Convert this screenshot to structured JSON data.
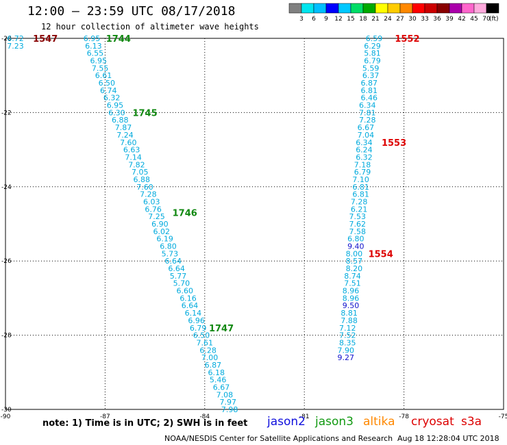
{
  "header": {
    "title": "12:00 – 23:59 UTC 08/17/2018",
    "subtitle": "12 hour collection of altimeter wave heights"
  },
  "colorbar": {
    "labels": [
      "3",
      "6",
      "9",
      "12",
      "15",
      "18",
      "21",
      "24",
      "27",
      "30",
      "33",
      "36",
      "39",
      "42",
      "45",
      "70"
    ],
    "unit": "(ft)",
    "colors": [
      "#808080",
      "#00e5ee",
      "#00bfff",
      "#0000ff",
      "#00c8ff",
      "#00dd66",
      "#00aa00",
      "#ffff00",
      "#ffcc00",
      "#ff8800",
      "#ff0000",
      "#cc0000",
      "#880000",
      "#aa00aa",
      "#ff66cc",
      "#ffaadd",
      "#000000"
    ]
  },
  "note": "note: 1) Time is in UTC; 2) SWH is in feet",
  "legend": [
    {
      "label": "jason2",
      "color": "#1010dd"
    },
    {
      "label": "jason3",
      "color": "#119911"
    },
    {
      "label": "altika",
      "color": "#ff8800"
    },
    {
      "label": "cryosat",
      "color": "#dd0000"
    },
    {
      "label": "s3a",
      "color": "#dd0000"
    }
  ],
  "footer": {
    "credit": "NOAA/NESDIS Center for Satellite Applications and Research",
    "timestamp": "Aug 18 12:28:04 UTC 2018"
  },
  "chart_data": {
    "type": "scatter",
    "title": "12:00 – 23:59 UTC 08/17/2018",
    "x_ticks": [
      "-90",
      "-87",
      "-84",
      "-81",
      "-78",
      "-75"
    ],
    "y_ticks": [
      "-20",
      "-22",
      "-24",
      "-26",
      "-28",
      "-30"
    ],
    "xlim": [
      -90,
      -75
    ],
    "ylim": [
      -30,
      -20
    ],
    "grid": true,
    "value_unit": "ft",
    "passes": [
      {
        "points": [
          {
            "lon": -89.7,
            "lat": -20.0,
            "swh": "6.72"
          },
          {
            "lon": -89.7,
            "lat": -20.2,
            "swh": "7.23"
          }
        ],
        "time_labels": [
          {
            "lon": -88.8,
            "lat": -20.0,
            "text": "1547",
            "color": "#880000"
          }
        ]
      },
      {
        "points": [
          {
            "lon": -87.4,
            "lat": -20.0,
            "swh": "6.95"
          },
          {
            "lon": -87.35,
            "lat": -20.2,
            "swh": "6.13"
          },
          {
            "lon": -87.3,
            "lat": -20.4,
            "swh": "6.55"
          },
          {
            "lon": -87.2,
            "lat": -20.6,
            "swh": "6.95"
          },
          {
            "lon": -87.15,
            "lat": -20.8,
            "swh": "7.55"
          },
          {
            "lon": -87.05,
            "lat": -21.0,
            "swh": "6.61"
          },
          {
            "lon": -86.95,
            "lat": -21.2,
            "swh": "6.50"
          },
          {
            "lon": -86.9,
            "lat": -21.4,
            "swh": "6.74"
          },
          {
            "lon": -86.8,
            "lat": -21.6,
            "swh": "6.32"
          },
          {
            "lon": -86.7,
            "lat": -21.8,
            "swh": "6.95"
          },
          {
            "lon": -86.65,
            "lat": -22.0,
            "swh": "6.30"
          },
          {
            "lon": -86.55,
            "lat": -22.2,
            "swh": "6.88"
          },
          {
            "lon": -86.45,
            "lat": -22.4,
            "swh": "7.87"
          },
          {
            "lon": -86.4,
            "lat": -22.6,
            "swh": "7.24"
          },
          {
            "lon": -86.3,
            "lat": -22.8,
            "swh": "7.60"
          },
          {
            "lon": -86.2,
            "lat": -23.0,
            "swh": "6.63"
          },
          {
            "lon": -86.15,
            "lat": -23.2,
            "swh": "7.14"
          },
          {
            "lon": -86.05,
            "lat": -23.4,
            "swh": "7.82"
          },
          {
            "lon": -85.95,
            "lat": -23.6,
            "swh": "7.05"
          },
          {
            "lon": -85.9,
            "lat": -23.8,
            "swh": "6.88"
          },
          {
            "lon": -85.8,
            "lat": -24.0,
            "swh": "7.60"
          },
          {
            "lon": -85.7,
            "lat": -24.2,
            "swh": "7.28"
          },
          {
            "lon": -85.6,
            "lat": -24.4,
            "swh": "6.03"
          },
          {
            "lon": -85.55,
            "lat": -24.6,
            "swh": "6.76"
          },
          {
            "lon": -85.45,
            "lat": -24.8,
            "swh": "7.25"
          },
          {
            "lon": -85.35,
            "lat": -25.0,
            "swh": "6.90"
          },
          {
            "lon": -85.3,
            "lat": -25.2,
            "swh": "6.02"
          },
          {
            "lon": -85.2,
            "lat": -25.4,
            "swh": "6.19"
          },
          {
            "lon": -85.1,
            "lat": -25.6,
            "swh": "6.80"
          },
          {
            "lon": -85.05,
            "lat": -25.8,
            "swh": "5.73"
          },
          {
            "lon": -84.95,
            "lat": -26.0,
            "swh": "6.64"
          },
          {
            "lon": -84.85,
            "lat": -26.2,
            "swh": "6.64"
          },
          {
            "lon": -84.8,
            "lat": -26.4,
            "swh": "5.77"
          },
          {
            "lon": -84.7,
            "lat": -26.6,
            "swh": "5.70"
          },
          {
            "lon": -84.6,
            "lat": -26.8,
            "swh": "6.60"
          },
          {
            "lon": -84.5,
            "lat": -27.0,
            "swh": "6.16"
          },
          {
            "lon": -84.45,
            "lat": -27.2,
            "swh": "6.64"
          },
          {
            "lon": -84.35,
            "lat": -27.4,
            "swh": "6.14"
          },
          {
            "lon": -84.25,
            "lat": -27.6,
            "swh": "6.96"
          },
          {
            "lon": -84.2,
            "lat": -27.8,
            "swh": "6.79"
          },
          {
            "lon": -84.1,
            "lat": -28.0,
            "swh": "6.50"
          },
          {
            "lon": -84.0,
            "lat": -28.2,
            "swh": "7.61"
          },
          {
            "lon": -83.9,
            "lat": -28.4,
            "swh": "6.28"
          },
          {
            "lon": -83.85,
            "lat": -28.6,
            "swh": "7.00"
          },
          {
            "lon": -83.75,
            "lat": -28.8,
            "swh": "6.87"
          },
          {
            "lon": -83.65,
            "lat": -29.0,
            "swh": "6.18"
          },
          {
            "lon": -83.6,
            "lat": -29.2,
            "swh": "5.46"
          },
          {
            "lon": -83.5,
            "lat": -29.4,
            "swh": "6.67"
          },
          {
            "lon": -83.4,
            "lat": -29.6,
            "swh": "7.08"
          },
          {
            "lon": -83.3,
            "lat": -29.8,
            "swh": "7.97"
          },
          {
            "lon": -83.25,
            "lat": -30.0,
            "swh": "7.98"
          }
        ],
        "time_labels": [
          {
            "lon": -86.6,
            "lat": -20.0,
            "text": "1744",
            "color": "#118811"
          },
          {
            "lon": -85.8,
            "lat": -22.0,
            "text": "1745",
            "color": "#118811"
          },
          {
            "lon": -84.6,
            "lat": -24.7,
            "text": "1746",
            "color": "#118811"
          },
          {
            "lon": -83.5,
            "lat": -27.8,
            "text": "1747",
            "color": "#118811"
          }
        ]
      },
      {
        "points": [
          {
            "lon": -78.9,
            "lat": -20.0,
            "swh": "6.59"
          },
          {
            "lon": -78.95,
            "lat": -20.2,
            "swh": "6.29"
          },
          {
            "lon": -78.95,
            "lat": -20.4,
            "swh": "5.81"
          },
          {
            "lon": -78.95,
            "lat": -20.6,
            "swh": "6.79"
          },
          {
            "lon": -79.0,
            "lat": -20.8,
            "swh": "5.59"
          },
          {
            "lon": -79.0,
            "lat": -21.0,
            "swh": "6.37"
          },
          {
            "lon": -79.05,
            "lat": -21.2,
            "swh": "6.87"
          },
          {
            "lon": -79.05,
            "lat": -21.4,
            "swh": "6.81"
          },
          {
            "lon": -79.05,
            "lat": -21.6,
            "swh": "6.46"
          },
          {
            "lon": -79.1,
            "lat": -21.8,
            "swh": "6.34"
          },
          {
            "lon": -79.1,
            "lat": -22.0,
            "swh": "7.81"
          },
          {
            "lon": -79.1,
            "lat": -22.2,
            "swh": "7.28"
          },
          {
            "lon": -79.15,
            "lat": -22.4,
            "swh": "6.67"
          },
          {
            "lon": -79.15,
            "lat": -22.6,
            "swh": "7.04"
          },
          {
            "lon": -79.2,
            "lat": -22.8,
            "swh": "6.34"
          },
          {
            "lon": -79.2,
            "lat": -23.0,
            "swh": "6.24"
          },
          {
            "lon": -79.2,
            "lat": -23.2,
            "swh": "6.32"
          },
          {
            "lon": -79.25,
            "lat": -23.4,
            "swh": "7.18"
          },
          {
            "lon": -79.25,
            "lat": -23.6,
            "swh": "6.79"
          },
          {
            "lon": -79.3,
            "lat": -23.8,
            "swh": "7.10"
          },
          {
            "lon": -79.3,
            "lat": -24.0,
            "swh": "6.81"
          },
          {
            "lon": -79.3,
            "lat": -24.2,
            "swh": "6.81"
          },
          {
            "lon": -79.35,
            "lat": -24.4,
            "swh": "7.28"
          },
          {
            "lon": -79.35,
            "lat": -24.6,
            "swh": "6.21"
          },
          {
            "lon": -79.4,
            "lat": -24.8,
            "swh": "7.53"
          },
          {
            "lon": -79.4,
            "lat": -25.0,
            "swh": "7.62"
          },
          {
            "lon": -79.4,
            "lat": -25.2,
            "swh": "7.58"
          },
          {
            "lon": -79.45,
            "lat": -25.4,
            "swh": "6.80"
          },
          {
            "lon": -79.45,
            "lat": -25.6,
            "swh": "9.40"
          },
          {
            "lon": -79.5,
            "lat": -25.8,
            "swh": "8.00"
          },
          {
            "lon": -79.5,
            "lat": -26.0,
            "swh": "8.57"
          },
          {
            "lon": -79.5,
            "lat": -26.2,
            "swh": "8.20"
          },
          {
            "lon": -79.55,
            "lat": -26.4,
            "swh": "8.74"
          },
          {
            "lon": -79.55,
            "lat": -26.6,
            "swh": "7.51"
          },
          {
            "lon": -79.6,
            "lat": -26.8,
            "swh": "8.96"
          },
          {
            "lon": -79.6,
            "lat": -27.0,
            "swh": "8.96"
          },
          {
            "lon": -79.6,
            "lat": -27.2,
            "swh": "9.50"
          },
          {
            "lon": -79.65,
            "lat": -27.4,
            "swh": "8.81"
          },
          {
            "lon": -79.65,
            "lat": -27.6,
            "swh": "7.88"
          },
          {
            "lon": -79.7,
            "lat": -27.8,
            "swh": "7.12"
          },
          {
            "lon": -79.7,
            "lat": -28.0,
            "swh": "7.52"
          },
          {
            "lon": -79.7,
            "lat": -28.2,
            "swh": "8.35"
          },
          {
            "lon": -79.75,
            "lat": -28.4,
            "swh": "7.90"
          },
          {
            "lon": -79.75,
            "lat": -28.6,
            "swh": "9.27"
          }
        ],
        "time_labels": [
          {
            "lon": -77.9,
            "lat": -20.0,
            "text": "1552",
            "color": "#dd0000"
          },
          {
            "lon": -78.3,
            "lat": -22.8,
            "text": "1553",
            "color": "#dd0000"
          },
          {
            "lon": -78.7,
            "lat": -25.8,
            "text": "1554",
            "color": "#dd0000"
          }
        ]
      }
    ]
  }
}
